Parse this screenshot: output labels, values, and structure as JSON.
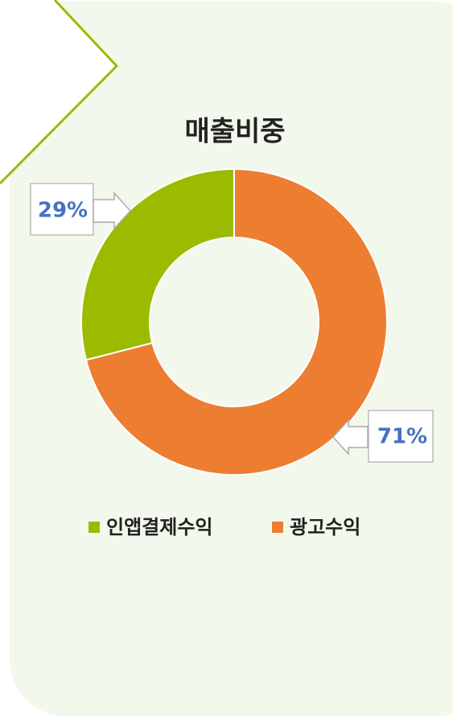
{
  "chart_data": {
    "type": "donut",
    "title": "매출비중",
    "categories": [
      "인앱결제수익",
      "광고수익"
    ],
    "values": [
      29,
      71
    ],
    "value_labels": [
      "29%",
      "71%"
    ],
    "colors": [
      "#9bbb00",
      "#ed7d31"
    ],
    "legend": "bottom"
  }
}
